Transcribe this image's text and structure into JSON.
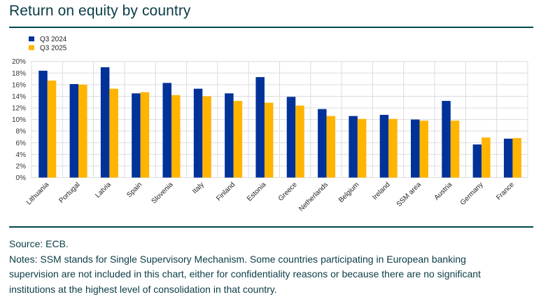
{
  "header": {
    "title": "Return on equity by country"
  },
  "chart_data": {
    "type": "bar",
    "title": "Return on equity by country",
    "xlabel": "",
    "ylabel": "",
    "ylim": [
      0,
      20
    ],
    "y_ticks": [
      "0%",
      "2%",
      "4%",
      "6%",
      "8%",
      "10%",
      "12%",
      "14%",
      "16%",
      "18%",
      "20%"
    ],
    "y_tick_values": [
      0,
      2,
      4,
      6,
      8,
      10,
      12,
      14,
      16,
      18,
      20
    ],
    "grid": true,
    "legend_position": "top-left",
    "categories": [
      "Lithuania",
      "Portugal",
      "Latvia",
      "Spain",
      "Slovenia",
      "Italy",
      "Finland",
      "Estonia",
      "Greece",
      "Netherlands",
      "Belgium",
      "Ireland",
      "SSM area",
      "Austria",
      "Germany",
      "France"
    ],
    "series": [
      {
        "name": "Q3 2024",
        "color": "#003299",
        "values": [
          18.4,
          16.1,
          19.0,
          14.5,
          16.3,
          15.3,
          14.5,
          17.3,
          13.9,
          11.8,
          10.6,
          10.8,
          10.0,
          13.2,
          5.7,
          6.7
        ]
      },
      {
        "name": "Q3 2025",
        "color": "#FFB400",
        "values": [
          16.7,
          16.0,
          15.3,
          14.7,
          14.2,
          14.0,
          13.2,
          12.9,
          12.4,
          10.6,
          10.1,
          10.1,
          9.8,
          9.8,
          6.9,
          6.8
        ]
      }
    ]
  },
  "footer": {
    "source": "Source: ECB.",
    "notes_lines": [
      "Notes: SSM stands for Single Supervisory Mechanism. Some countries participating in European banking",
      "supervision are not included in this chart, either for confidentiality reasons or because there are no significant",
      "institutions at the highest level of consolidation in that country."
    ]
  }
}
